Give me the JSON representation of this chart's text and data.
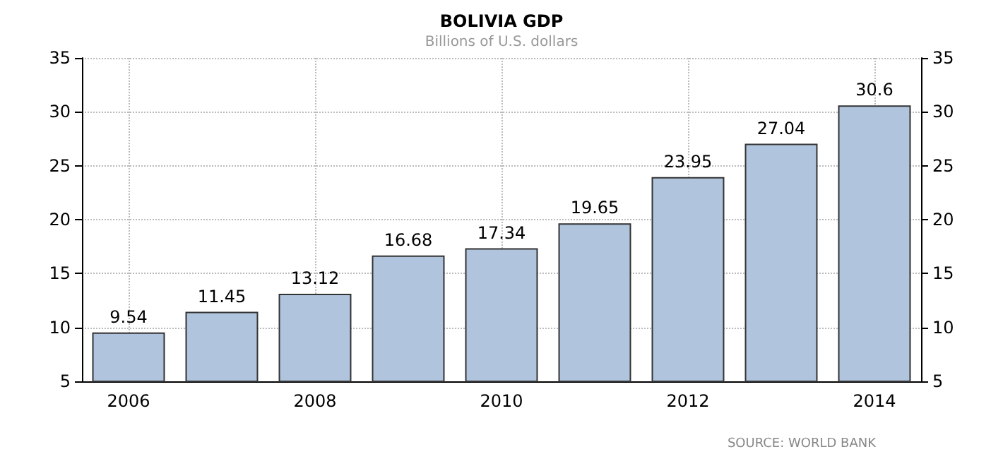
{
  "chart_data": {
    "type": "bar",
    "title": "BOLIVIA GDP",
    "subtitle": "Billions of U.S. dollars",
    "categories": [
      "2006",
      null,
      "2008",
      null,
      "2010",
      null,
      "2012",
      null,
      "2014"
    ],
    "values": [
      9.54,
      11.45,
      13.12,
      16.68,
      17.34,
      19.65,
      23.95,
      27.04,
      30.6
    ],
    "color": "#b0c4de",
    "data_labels": true,
    "ylim": [
      5,
      35
    ],
    "yticks": [
      5,
      10,
      15,
      20,
      25,
      30,
      35
    ],
    "y2lim": [
      5,
      35
    ],
    "y2ticks": [
      5,
      10,
      15,
      20,
      25,
      30,
      35
    ],
    "grid": true,
    "annotations": [
      "SOURCE: WORLD BANK"
    ]
  }
}
